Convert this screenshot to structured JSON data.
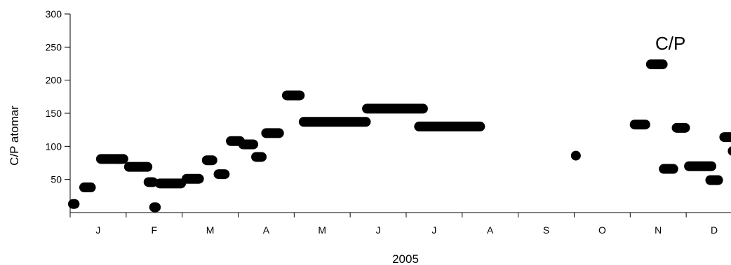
{
  "chart_data": {
    "type": "scatter",
    "title": "",
    "annotation": "C/P",
    "xlabel": "2005",
    "ylabel": "C/P atomar",
    "ylim": [
      0,
      300
    ],
    "yticks": [
      50,
      100,
      150,
      200,
      250,
      300
    ],
    "xlim_months": [
      0.5,
      12.3
    ],
    "month_labels": [
      "J",
      "F",
      "M",
      "A",
      "M",
      "J",
      "J",
      "A",
      "S",
      "O",
      "N",
      "D"
    ],
    "grid": false,
    "marker_color": "#000000",
    "segments": [
      {
        "x_start": 0.55,
        "x_end": 0.58,
        "y": 13
      },
      {
        "x_start": 0.75,
        "x_end": 0.87,
        "y": 38
      },
      {
        "x_start": 1.05,
        "x_end": 1.38,
        "y": 81
      },
      {
        "x_start": 1.38,
        "x_end": 1.45,
        "y": 81
      },
      {
        "x_start": 1.55,
        "x_end": 1.88,
        "y": 69
      },
      {
        "x_start": 1.9,
        "x_end": 1.98,
        "y": 46
      },
      {
        "x_start": 2.0,
        "x_end": 2.03,
        "y": 8
      },
      {
        "x_start": 2.1,
        "x_end": 2.48,
        "y": 44
      },
      {
        "x_start": 2.58,
        "x_end": 2.8,
        "y": 51
      },
      {
        "x_start": 2.94,
        "x_end": 3.04,
        "y": 79
      },
      {
        "x_start": 3.15,
        "x_end": 3.26,
        "y": 58
      },
      {
        "x_start": 3.37,
        "x_end": 3.53,
        "y": 108
      },
      {
        "x_start": 3.59,
        "x_end": 3.77,
        "y": 103
      },
      {
        "x_start": 3.82,
        "x_end": 3.92,
        "y": 84
      },
      {
        "x_start": 4.0,
        "x_end": 4.23,
        "y": 120
      },
      {
        "x_start": 4.37,
        "x_end": 4.6,
        "y": 177
      },
      {
        "x_start": 4.67,
        "x_end": 5.78,
        "y": 137
      },
      {
        "x_start": 5.8,
        "x_end": 6.8,
        "y": 157
      },
      {
        "x_start": 6.73,
        "x_end": 7.82,
        "y": 130
      },
      {
        "x_start": 9.53,
        "x_end": 9.53,
        "y": 86
      },
      {
        "x_start": 10.58,
        "x_end": 10.77,
        "y": 133
      },
      {
        "x_start": 10.87,
        "x_end": 11.08,
        "y": 224
      },
      {
        "x_start": 11.1,
        "x_end": 11.27,
        "y": 66
      },
      {
        "x_start": 11.33,
        "x_end": 11.48,
        "y": 128
      },
      {
        "x_start": 11.55,
        "x_end": 11.95,
        "y": 70
      },
      {
        "x_start": 11.93,
        "x_end": 12.07,
        "y": 49
      },
      {
        "x_start": 12.18,
        "x_end": 12.33,
        "y": 114
      },
      {
        "x_start": 12.33,
        "x_end": 12.4,
        "y": 93
      }
    ]
  }
}
